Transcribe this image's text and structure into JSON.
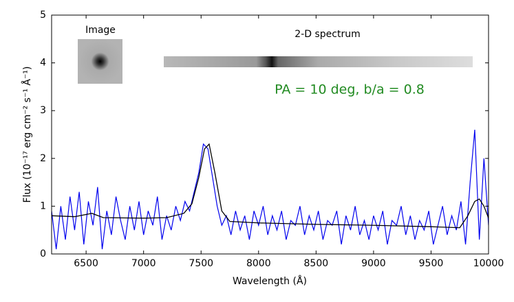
{
  "chart_data": {
    "type": "line",
    "xlabel": "Wavelength (Å)",
    "ylabel": "Flux (10⁻¹⁷ erg cm⁻² s⁻¹ Å⁻¹)",
    "annotations": [
      "Image",
      "2-D spectrum",
      "PA = 10 deg, b/a = 0.8"
    ],
    "annotation_color": "#228b22",
    "xlim": [
      6200,
      10000
    ],
    "ylim": [
      0,
      5
    ],
    "xticks": [
      6500,
      7000,
      7500,
      8000,
      8500,
      9000,
      9500,
      10000
    ],
    "yticks": [
      0,
      1,
      2,
      3,
      4,
      5
    ],
    "series": [
      {
        "color": "#0000ee",
        "x": [
          6200,
          6240,
          6280,
          6320,
          6360,
          6400,
          6440,
          6480,
          6520,
          6560,
          6600,
          6640,
          6680,
          6720,
          6760,
          6800,
          6840,
          6880,
          6920,
          6960,
          7000,
          7040,
          7080,
          7120,
          7160,
          7200,
          7240,
          7280,
          7320,
          7360,
          7400,
          7440,
          7480,
          7520,
          7560,
          7600,
          7640,
          7680,
          7720,
          7760,
          7800,
          7840,
          7880,
          7920,
          7960,
          8000,
          8040,
          8080,
          8120,
          8160,
          8200,
          8240,
          8280,
          8320,
          8360,
          8400,
          8440,
          8480,
          8520,
          8560,
          8600,
          8640,
          8680,
          8720,
          8760,
          8800,
          8840,
          8880,
          8920,
          8960,
          9000,
          9040,
          9080,
          9120,
          9160,
          9200,
          9240,
          9280,
          9320,
          9360,
          9400,
          9440,
          9480,
          9520,
          9560,
          9600,
          9640,
          9680,
          9720,
          9760,
          9800,
          9840,
          9880,
          9920,
          9960,
          10000
        ],
        "values": [
          0.9,
          0.1,
          1.0,
          0.3,
          1.2,
          0.5,
          1.3,
          0.2,
          1.1,
          0.6,
          1.4,
          0.1,
          0.9,
          0.4,
          1.2,
          0.7,
          0.3,
          1.0,
          0.5,
          1.1,
          0.4,
          0.9,
          0.6,
          1.2,
          0.3,
          0.8,
          0.5,
          1.0,
          0.7,
          1.1,
          0.9,
          1.3,
          1.7,
          2.3,
          2.2,
          1.6,
          1.0,
          0.6,
          0.8,
          0.4,
          0.9,
          0.5,
          0.8,
          0.3,
          0.9,
          0.6,
          1.0,
          0.4,
          0.8,
          0.5,
          0.9,
          0.3,
          0.7,
          0.6,
          1.0,
          0.4,
          0.8,
          0.5,
          0.9,
          0.3,
          0.7,
          0.6,
          0.9,
          0.2,
          0.8,
          0.5,
          1.0,
          0.4,
          0.7,
          0.3,
          0.8,
          0.5,
          0.9,
          0.2,
          0.7,
          0.6,
          1.0,
          0.4,
          0.8,
          0.3,
          0.7,
          0.5,
          0.9,
          0.2,
          0.6,
          1.0,
          0.4,
          0.8,
          0.5,
          1.1,
          0.2,
          1.5,
          2.6,
          0.3,
          2.0,
          0.6
        ]
      },
      {
        "color": "#000000",
        "x": [
          6200,
          6400,
          6550,
          6650,
          7000,
          7200,
          7350,
          7420,
          7480,
          7530,
          7570,
          7620,
          7680,
          7750,
          8000,
          8500,
          9000,
          9500,
          9750,
          9820,
          9880,
          9920,
          9960,
          10000
        ],
        "values": [
          0.8,
          0.78,
          0.85,
          0.76,
          0.75,
          0.76,
          0.85,
          1.05,
          1.6,
          2.2,
          2.3,
          1.7,
          0.9,
          0.68,
          0.65,
          0.62,
          0.6,
          0.57,
          0.55,
          0.8,
          1.1,
          1.15,
          1.0,
          0.75
        ]
      }
    ]
  }
}
